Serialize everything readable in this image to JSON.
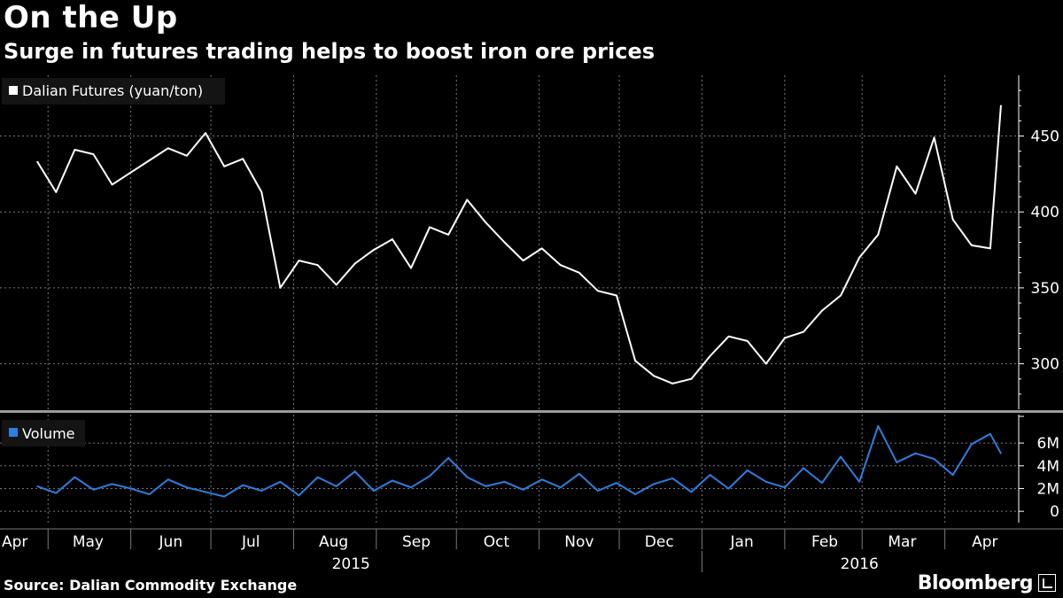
{
  "header": {
    "title": "On the Up",
    "subtitle": "Surge in futures trading helps to boost iron ore prices"
  },
  "footer": {
    "source": "Source: Dalian Commodity Exchange",
    "brand": "Bloomberg"
  },
  "colors": {
    "background": "#000000",
    "price_line": "#ffffff",
    "volume_line": "#2d7fe0",
    "grid": "#7a7a7a"
  },
  "chart_data": [
    {
      "type": "line",
      "legend": "Dalian Futures (yuan/ton)",
      "ylim": [
        270,
        490
      ],
      "yticks": [
        300,
        350,
        400,
        450
      ],
      "grid": true,
      "legend_position": "top-left",
      "x_tick_labels": [
        "Apr",
        "May",
        "Jun",
        "Jul",
        "Aug",
        "Sep",
        "Oct",
        "Nov",
        "Dec",
        "Jan",
        "Feb",
        "Mar",
        "Apr"
      ],
      "x_year_labels": [
        "2015",
        "2016"
      ],
      "x": [
        "2015-04-27",
        "2015-05-04",
        "2015-05-11",
        "2015-05-18",
        "2015-05-25",
        "2015-06-01",
        "2015-06-08",
        "2015-06-15",
        "2015-06-22",
        "2015-06-29",
        "2015-07-06",
        "2015-07-13",
        "2015-07-20",
        "2015-07-27",
        "2015-08-03",
        "2015-08-10",
        "2015-08-17",
        "2015-08-24",
        "2015-08-31",
        "2015-09-07",
        "2015-09-14",
        "2015-09-21",
        "2015-09-28",
        "2015-10-05",
        "2015-10-12",
        "2015-10-19",
        "2015-10-26",
        "2015-11-02",
        "2015-11-09",
        "2015-11-16",
        "2015-11-23",
        "2015-11-30",
        "2015-12-07",
        "2015-12-14",
        "2015-12-21",
        "2015-12-28",
        "2016-01-04",
        "2016-01-11",
        "2016-01-18",
        "2016-01-25",
        "2016-02-01",
        "2016-02-08",
        "2016-02-15",
        "2016-02-22",
        "2016-02-29",
        "2016-03-07",
        "2016-03-14",
        "2016-03-21",
        "2016-03-28",
        "2016-04-04",
        "2016-04-11",
        "2016-04-18",
        "2016-04-22"
      ],
      "values": [
        433,
        413,
        441,
        438,
        418,
        426,
        434,
        442,
        437,
        452,
        430,
        435,
        413,
        350,
        368,
        365,
        352,
        366,
        375,
        382,
        363,
        390,
        385,
        408,
        393,
        380,
        368,
        376,
        365,
        360,
        348,
        345,
        302,
        292,
        287,
        290,
        305,
        318,
        315,
        300,
        317,
        321,
        335,
        345,
        370,
        385,
        430,
        412,
        449,
        395,
        378,
        376,
        470
      ]
    },
    {
      "type": "line",
      "legend": "Volume",
      "ylim": [
        -1000000,
        8500000
      ],
      "yticks": [
        0,
        2000000,
        4000000,
        6000000
      ],
      "ytick_labels": [
        "0",
        "2M",
        "4M",
        "6M"
      ],
      "grid": true,
      "legend_position": "top-left",
      "x": [
        "2015-04-27",
        "2015-05-04",
        "2015-05-11",
        "2015-05-18",
        "2015-05-25",
        "2015-06-01",
        "2015-06-08",
        "2015-06-15",
        "2015-06-22",
        "2015-06-29",
        "2015-07-06",
        "2015-07-13",
        "2015-07-20",
        "2015-07-27",
        "2015-08-03",
        "2015-08-10",
        "2015-08-17",
        "2015-08-24",
        "2015-08-31",
        "2015-09-07",
        "2015-09-14",
        "2015-09-21",
        "2015-09-28",
        "2015-10-05",
        "2015-10-12",
        "2015-10-19",
        "2015-10-26",
        "2015-11-02",
        "2015-11-09",
        "2015-11-16",
        "2015-11-23",
        "2015-11-30",
        "2015-12-07",
        "2015-12-14",
        "2015-12-21",
        "2015-12-28",
        "2016-01-04",
        "2016-01-11",
        "2016-01-18",
        "2016-01-25",
        "2016-02-01",
        "2016-02-08",
        "2016-02-15",
        "2016-02-22",
        "2016-02-29",
        "2016-03-07",
        "2016-03-14",
        "2016-03-21",
        "2016-03-28",
        "2016-04-04",
        "2016-04-11",
        "2016-04-18",
        "2016-04-22"
      ],
      "values": [
        2200000,
        1600000,
        3000000,
        1900000,
        2400000,
        2000000,
        1500000,
        2800000,
        2100000,
        1700000,
        1300000,
        2300000,
        1800000,
        2600000,
        1400000,
        3000000,
        2200000,
        3500000,
        1800000,
        2700000,
        2100000,
        3100000,
        4700000,
        3000000,
        2200000,
        2600000,
        1900000,
        2800000,
        2100000,
        3300000,
        1800000,
        2500000,
        1500000,
        2400000,
        2900000,
        1700000,
        3200000,
        2000000,
        3600000,
        2600000,
        2100000,
        3800000,
        2500000,
        4800000,
        2600000,
        7500000,
        4300000,
        5100000,
        4600000,
        3200000,
        5900000,
        6800000,
        5100000
      ]
    }
  ]
}
